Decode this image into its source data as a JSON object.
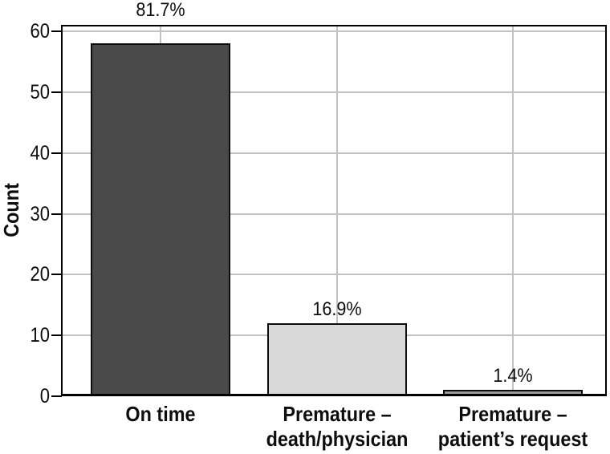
{
  "chart_data": {
    "type": "bar",
    "title": "",
    "xlabel": "",
    "ylabel": "Count",
    "categories": [
      [
        "On time"
      ],
      [
        "Premature –",
        "death/physician"
      ],
      [
        "Premature –",
        "patient’s request"
      ]
    ],
    "values": [
      58,
      12,
      1
    ],
    "bar_labels": [
      "81.7%",
      "16.9%",
      "1.4%"
    ],
    "bar_colors": [
      "#4a4a4a",
      "#d8d8d8",
      "#9c9c9c"
    ],
    "yticks": [
      0,
      10,
      20,
      30,
      40,
      50,
      60
    ],
    "ylim": [
      0,
      61
    ],
    "grid": "on",
    "legend": "none",
    "colors": {
      "grid": "#c2c2c2",
      "frame": "#000000",
      "bar_border": "#0d0d0d",
      "text": "#0d0d0d",
      "background": "#ffffff"
    }
  }
}
